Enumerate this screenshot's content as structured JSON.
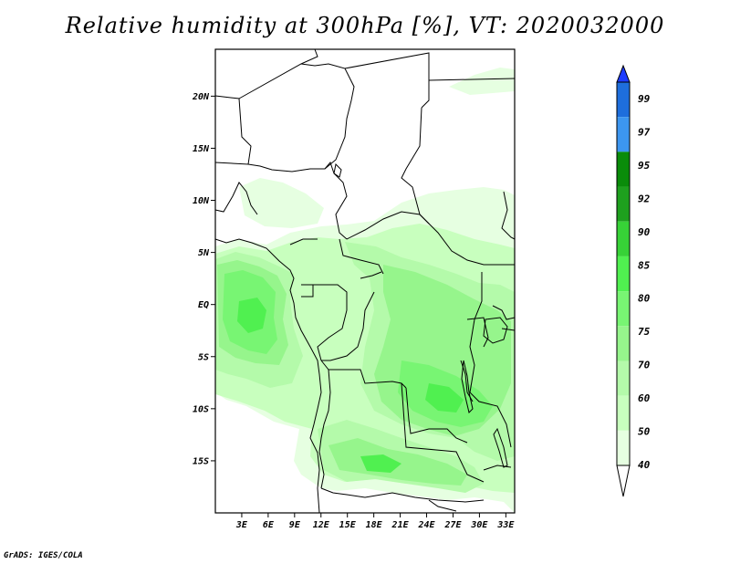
{
  "title": "Relative humidity at 300hPa [%], VT: 2020032000",
  "credit": "GrADS: IGES/COLA",
  "map": {
    "lon_range_deg": [
      0,
      34
    ],
    "lat_range_deg": [
      -20,
      24.5
    ],
    "lat_ticks": [
      "20N",
      "15N",
      "10N",
      "5N",
      "EQ",
      "5S",
      "10S",
      "15S"
    ],
    "lon_ticks": [
      "3E",
      "6E",
      "9E",
      "12E",
      "15E",
      "18E",
      "21E",
      "24E",
      "27E",
      "30E",
      "33E"
    ]
  },
  "colorbar": {
    "levels": [
      "99",
      "97",
      "95",
      "92",
      "90",
      "85",
      "80",
      "75",
      "70",
      "60",
      "50",
      "40"
    ],
    "colors": [
      "#1e3cff",
      "#1e6edc",
      "#3c96f0",
      "#0a8c0a",
      "#1ea01e",
      "#37d237",
      "#50f050",
      "#78f573",
      "#96f58c",
      "#b4faaa",
      "#c8ffbe",
      "#e6ffe1",
      "#ffffff"
    ]
  }
}
